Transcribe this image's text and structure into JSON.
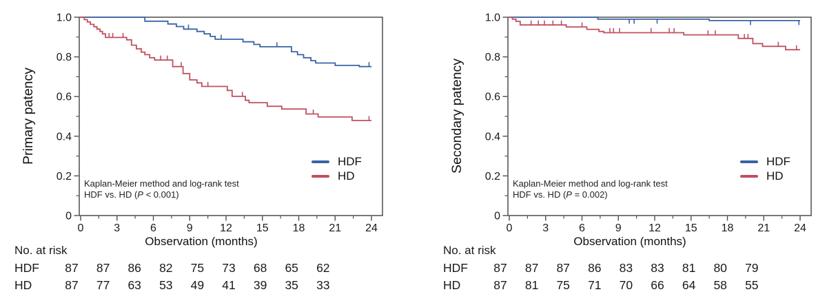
{
  "colors": {
    "hdf": "#3a63a6",
    "hd": "#c05060",
    "axis": "#4c4c4c",
    "text": "#1a1a1a"
  },
  "chart_data": [
    {
      "type": "line",
      "subtype": "kaplan-meier-step",
      "ylabel": "Primary patency",
      "xlabel": "Observation (months)",
      "xlim": [
        0,
        25
      ],
      "ylim": [
        0,
        1.0
      ],
      "grid": false,
      "xticks": [
        0,
        3,
        6,
        9,
        12,
        15,
        18,
        21,
        24
      ],
      "yticks": [
        "1.0",
        "0.8",
        "0.6",
        "0.4",
        "0.2",
        "0"
      ],
      "ytick_values": [
        1.0,
        0.8,
        0.6,
        0.4,
        0.2,
        0
      ],
      "legend_position": "right-middle",
      "annotation": {
        "line1": "Kaplan-Meier method and log-rank test",
        "line2_prefix": "HDF vs. HD (",
        "line2_italic": "P",
        "line2_suffix": " < 0.001)"
      },
      "series": [
        {
          "name": "HDF",
          "color": "#3a63a6",
          "censor_dir": "up",
          "end_month": 24,
          "steps": [
            [
              0,
              1.0
            ],
            [
              5.3,
              0.98
            ],
            [
              7.2,
              0.966
            ],
            [
              7.9,
              0.953
            ],
            [
              8.5,
              0.94
            ],
            [
              9.6,
              0.928
            ],
            [
              10.2,
              0.916
            ],
            [
              10.7,
              0.903
            ],
            [
              11.1,
              0.889
            ],
            [
              13.4,
              0.876
            ],
            [
              14.3,
              0.863
            ],
            [
              14.8,
              0.851
            ],
            [
              17.4,
              0.826
            ],
            [
              17.9,
              0.811
            ],
            [
              18.4,
              0.796
            ],
            [
              19.0,
              0.781
            ],
            [
              19.4,
              0.769
            ],
            [
              21.0,
              0.757
            ],
            [
              23.0,
              0.751
            ]
          ],
          "censors": [
            [
              8.9,
              0.94
            ],
            [
              11.6,
              0.889
            ],
            [
              16.2,
              0.851
            ],
            [
              23.8,
              0.751
            ]
          ]
        },
        {
          "name": "HD",
          "color": "#c05060",
          "censor_dir": "up",
          "end_month": 24,
          "steps": [
            [
              0,
              1.0
            ],
            [
              0.3,
              0.988
            ],
            [
              0.55,
              0.976
            ],
            [
              0.8,
              0.964
            ],
            [
              1.1,
              0.952
            ],
            [
              1.35,
              0.94
            ],
            [
              1.6,
              0.928
            ],
            [
              1.8,
              0.916
            ],
            [
              2.05,
              0.898
            ],
            [
              3.8,
              0.886
            ],
            [
              4.2,
              0.859
            ],
            [
              4.6,
              0.841
            ],
            [
              5.0,
              0.824
            ],
            [
              5.3,
              0.811
            ],
            [
              5.7,
              0.796
            ],
            [
              6.1,
              0.784
            ],
            [
              7.6,
              0.751
            ],
            [
              8.45,
              0.716
            ],
            [
              9.0,
              0.684
            ],
            [
              9.6,
              0.669
            ],
            [
              10.0,
              0.651
            ],
            [
              12.1,
              0.631
            ],
            [
              12.5,
              0.601
            ],
            [
              13.6,
              0.581
            ],
            [
              13.9,
              0.569
            ],
            [
              15.4,
              0.551
            ],
            [
              16.6,
              0.537
            ],
            [
              18.6,
              0.512
            ],
            [
              19.6,
              0.497
            ],
            [
              22.4,
              0.479
            ]
          ],
          "censors": [
            [
              2.35,
              0.898
            ],
            [
              2.65,
              0.898
            ],
            [
              3.5,
              0.898
            ],
            [
              6.6,
              0.784
            ],
            [
              7.15,
              0.784
            ],
            [
              8.3,
              0.751
            ],
            [
              10.5,
              0.651
            ],
            [
              13.35,
              0.601
            ],
            [
              19.2,
              0.512
            ],
            [
              23.8,
              0.479
            ]
          ]
        }
      ],
      "risk_table": {
        "title": "No. at risk",
        "rows": [
          {
            "label": "HDF",
            "counts": [
              "87",
              "87",
              "86",
              "82",
              "75",
              "73",
              "68",
              "65",
              "62"
            ]
          },
          {
            "label": "HD",
            "counts": [
              "87",
              "77",
              "63",
              "53",
              "49",
              "41",
              "39",
              "35",
              "33"
            ]
          }
        ]
      }
    },
    {
      "type": "line",
      "subtype": "kaplan-meier-step",
      "ylabel": "Secondary patency",
      "xlabel": "Observation (months)",
      "xlim": [
        0,
        25
      ],
      "ylim": [
        0,
        1.0
      ],
      "grid": false,
      "xticks": [
        0,
        3,
        6,
        9,
        12,
        15,
        18,
        21,
        24
      ],
      "yticks": [
        "1.0",
        "0.8",
        "0.6",
        "0.4",
        "0.2",
        "0"
      ],
      "ytick_values": [
        1.0,
        0.8,
        0.6,
        0.4,
        0.2,
        0
      ],
      "legend_position": "right-middle",
      "annotation": {
        "line1": "Kaplan-Meier method and log-rank test",
        "line2_prefix": "HDF vs. HD (",
        "line2_italic": "P",
        "line2_suffix": " = 0.002)"
      },
      "series": [
        {
          "name": "HDF",
          "color": "#3a63a6",
          "censor_dir": "down",
          "end_month": 24,
          "steps": [
            [
              0,
              1.0
            ],
            [
              7.3,
              0.99
            ],
            [
              16.5,
              0.983
            ]
          ],
          "censors": [
            [
              9.9,
              0.99
            ],
            [
              10.3,
              0.99
            ],
            [
              12.2,
              0.99
            ],
            [
              19.9,
              0.983
            ],
            [
              23.9,
              0.983
            ]
          ]
        },
        {
          "name": "HD",
          "color": "#c05060",
          "censor_dir": "up",
          "end_month": 24,
          "steps": [
            [
              0,
              1.0
            ],
            [
              0.25,
              0.99
            ],
            [
              0.55,
              0.979
            ],
            [
              0.9,
              0.961
            ],
            [
              4.7,
              0.951
            ],
            [
              6.4,
              0.939
            ],
            [
              7.4,
              0.928
            ],
            [
              7.8,
              0.922
            ],
            [
              14.4,
              0.911
            ],
            [
              18.9,
              0.893
            ],
            [
              20.1,
              0.867
            ],
            [
              20.9,
              0.853
            ],
            [
              22.8,
              0.836
            ]
          ],
          "censors": [
            [
              1.8,
              0.961
            ],
            [
              2.4,
              0.961
            ],
            [
              2.9,
              0.961
            ],
            [
              3.6,
              0.961
            ],
            [
              4.3,
              0.961
            ],
            [
              6.0,
              0.951
            ],
            [
              8.3,
              0.922
            ],
            [
              8.6,
              0.922
            ],
            [
              9.1,
              0.922
            ],
            [
              11.7,
              0.922
            ],
            [
              13.2,
              0.922
            ],
            [
              13.6,
              0.922
            ],
            [
              16.4,
              0.911
            ],
            [
              17.0,
              0.911
            ],
            [
              19.4,
              0.893
            ],
            [
              19.7,
              0.893
            ],
            [
              22.2,
              0.853
            ],
            [
              23.7,
              0.836
            ]
          ]
        }
      ],
      "risk_table": {
        "title": "No. at risk",
        "rows": [
          {
            "label": "HDF",
            "counts": [
              "87",
              "87",
              "87",
              "86",
              "83",
              "83",
              "81",
              "80",
              "79"
            ]
          },
          {
            "label": "HD",
            "counts": [
              "87",
              "81",
              "75",
              "71",
              "70",
              "66",
              "64",
              "58",
              "55"
            ]
          }
        ]
      }
    }
  ]
}
